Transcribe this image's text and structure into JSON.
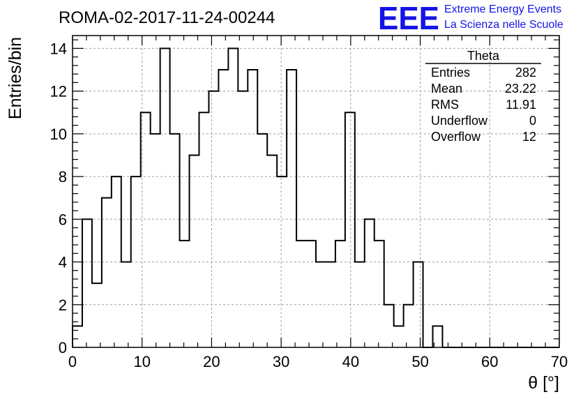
{
  "chart_data": {
    "type": "bar",
    "title": "ROMA-02-2017-11-24-00244",
    "xlabel": "θ [°]",
    "ylabel": "Entries/bin",
    "xlim": [
      0,
      70
    ],
    "ylim": [
      0,
      14.6
    ],
    "bin_width": 1.4,
    "grid": true,
    "x_ticks": [
      0,
      10,
      20,
      30,
      40,
      50,
      60,
      70
    ],
    "y_ticks": [
      0,
      2,
      4,
      6,
      8,
      10,
      12,
      14
    ],
    "values": [
      1,
      6,
      3,
      7,
      8,
      4,
      8,
      11,
      10,
      14,
      10,
      5,
      9,
      11,
      12,
      13,
      14,
      12,
      13,
      10,
      9,
      8,
      13,
      5,
      5,
      4,
      4,
      5,
      11,
      4,
      6,
      5,
      2,
      1,
      2,
      4,
      0,
      1,
      0,
      0,
      0,
      0,
      0,
      0,
      0,
      0,
      0,
      0,
      0,
      0
    ]
  },
  "logo": {
    "mark": "EEE",
    "line1": "Extreme Energy Events",
    "line2": "La Scienza nelle Scuole"
  },
  "stats": {
    "name": "Theta",
    "rows": [
      {
        "label": "Entries",
        "value": "282"
      },
      {
        "label": "Mean",
        "value": "23.22"
      },
      {
        "label": "RMS",
        "value": "11.91"
      },
      {
        "label": "Underflow",
        "value": "0"
      },
      {
        "label": "Overflow",
        "value": "12"
      }
    ]
  }
}
